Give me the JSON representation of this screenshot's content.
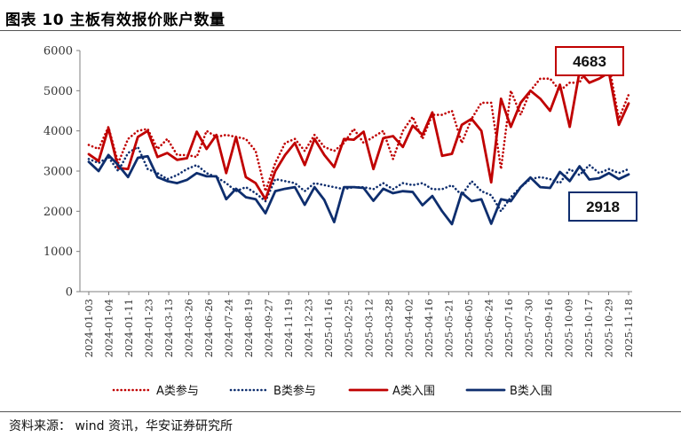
{
  "title": "图表 10 主板有效报价账户数量",
  "source": "资料来源：  wind 资讯，华安证券研究所",
  "chart_data": {
    "type": "line",
    "title": "图表 10 主板有效报价账户数量",
    "ylim": [
      0,
      6000
    ],
    "yticks": [
      "0",
      "1000",
      "2000",
      "3000",
      "4000",
      "5000",
      "6000"
    ],
    "xtick_labels": [
      "2024-01-03",
      "2024-01-04",
      "2024-01-11",
      "2024-01-23",
      "2024-03-13",
      "2024-03-26",
      "2024-06-26",
      "2024-07-24",
      "2024-08-19",
      "2024-09-27",
      "2024-11-19",
      "2024-12-23",
      "2025-01-16",
      "2025-02-25",
      "2025-03-12",
      "2025-03-28",
      "2025-04-02",
      "2025-04-16",
      "2025-05-21",
      "2025-06-05",
      "2025-06-24",
      "2025-07-16",
      "2025-07-30",
      "2025-09-16",
      "2025-10-09",
      "2025-10-17",
      "2025-10-29",
      "2025-11-18"
    ],
    "num_points": 56,
    "series": [
      {
        "name": "A类参与",
        "color": "#c00000",
        "style": "dotted",
        "values": [
          3650,
          3550,
          4100,
          3200,
          3800,
          4000,
          4050,
          3550,
          3800,
          3400,
          3400,
          3350,
          4000,
          3850,
          3900,
          3850,
          3800,
          3500,
          2500,
          3200,
          3700,
          3800,
          3500,
          3900,
          3600,
          3500,
          3700,
          4050,
          3700,
          3850,
          4000,
          3300,
          4000,
          4350,
          3800,
          4400,
          4400,
          4500,
          3700,
          4300,
          4700,
          4700,
          3050,
          5000,
          4400,
          5000,
          5300,
          5300,
          5000,
          5200,
          5200,
          5700,
          5600,
          5650,
          4300,
          4900
        ]
      },
      {
        "name": "B类参与",
        "color": "#0e2e6e",
        "style": "dotted",
        "values": [
          3300,
          3200,
          3350,
          3000,
          3450,
          3600,
          3050,
          2950,
          2800,
          2900,
          3050,
          3150,
          2950,
          2850,
          2700,
          2500,
          2600,
          2450,
          2250,
          2800,
          2750,
          2700,
          2500,
          2700,
          2650,
          2600,
          2550,
          2600,
          2600,
          2550,
          2700,
          2550,
          2700,
          2650,
          2700,
          2550,
          2550,
          2650,
          2400,
          2750,
          2500,
          2400,
          2000,
          2350,
          2600,
          2800,
          2850,
          2800,
          2700,
          3050,
          2900,
          3150,
          2950,
          3050,
          2950,
          3050
        ]
      },
      {
        "name": "A类入围",
        "color": "#c00000",
        "style": "solid",
        "values": [
          3420,
          3250,
          4070,
          3080,
          3050,
          3850,
          4000,
          3350,
          3450,
          3280,
          3320,
          3980,
          3550,
          3900,
          2950,
          3850,
          2850,
          2700,
          2300,
          3000,
          3400,
          3700,
          3150,
          3800,
          3400,
          3100,
          3800,
          3780,
          3980,
          3050,
          3820,
          3870,
          3600,
          4130,
          3900,
          4460,
          3380,
          3430,
          4150,
          4300,
          4000,
          2720,
          4800,
          4100,
          4700,
          5000,
          4800,
          4500,
          5150,
          4100,
          5480,
          5200,
          5300,
          5450,
          4150,
          4683
        ]
      },
      {
        "name": "B类入围",
        "color": "#0e2e6e",
        "style": "solid",
        "values": [
          3230,
          3000,
          3400,
          3150,
          2850,
          3330,
          3370,
          2850,
          2750,
          2700,
          2780,
          2950,
          2870,
          2870,
          2300,
          2560,
          2350,
          2300,
          1950,
          2500,
          2560,
          2600,
          2160,
          2600,
          2280,
          1730,
          2600,
          2600,
          2580,
          2260,
          2560,
          2450,
          2500,
          2480,
          2150,
          2380,
          2000,
          1680,
          2460,
          2250,
          2300,
          1690,
          2300,
          2250,
          2600,
          2840,
          2600,
          2580,
          2980,
          2750,
          3120,
          2790,
          2820,
          2950,
          2800,
          2918
        ]
      }
    ],
    "annotations": [
      {
        "text": "4683",
        "target_series": "A类入围",
        "border_color": "#c00000"
      },
      {
        "text": "2918",
        "target_series": "B类入围",
        "border_color": "#0e2e6e"
      }
    ],
    "legend": {
      "position": "bottom"
    }
  }
}
